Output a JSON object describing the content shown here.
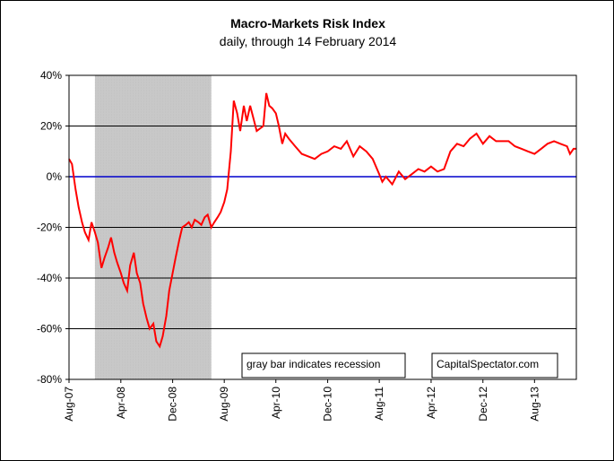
{
  "chart_data": {
    "type": "line",
    "title": "Macro-Markets Risk Index",
    "subtitle": "daily, through 14 February 2014",
    "xlabel": "",
    "ylabel": "",
    "ylim": [
      -80,
      40
    ],
    "y_ticks": [
      "40%",
      "20%",
      "0%",
      "-20%",
      "-40%",
      "-60%",
      "-80%"
    ],
    "y_tick_values": [
      40,
      20,
      0,
      -20,
      -40,
      -60,
      -80
    ],
    "x_ticks": [
      "Aug-07",
      "Apr-08",
      "Dec-08",
      "Aug-09",
      "Apr-10",
      "Dec-10",
      "Aug-11",
      "Apr-12",
      "Dec-12",
      "Aug-13"
    ],
    "x_tick_values": [
      "2007-08",
      "2008-04",
      "2008-12",
      "2009-08",
      "2010-04",
      "2010-12",
      "2011-08",
      "2012-04",
      "2012-12",
      "2013-08"
    ],
    "x_range": [
      "2007-08-01",
      "2014-02-14"
    ],
    "grid": true,
    "recession": {
      "start": "2007-12",
      "end": "2009-06",
      "color": "#c8c8c8"
    },
    "zero_line_color": "#0000cc",
    "series": [
      {
        "color": "#ff0000",
        "x": [
          "2007-08-01",
          "2007-08-15",
          "2007-09-01",
          "2007-09-15",
          "2007-10-01",
          "2007-10-15",
          "2007-11-01",
          "2007-11-15",
          "2007-12-01",
          "2007-12-15",
          "2008-01-01",
          "2008-01-15",
          "2008-02-01",
          "2008-02-15",
          "2008-03-01",
          "2008-03-15",
          "2008-04-01",
          "2008-04-15",
          "2008-05-01",
          "2008-05-15",
          "2008-06-01",
          "2008-06-15",
          "2008-07-01",
          "2008-07-15",
          "2008-08-01",
          "2008-08-15",
          "2008-09-01",
          "2008-09-15",
          "2008-10-01",
          "2008-10-15",
          "2008-11-01",
          "2008-11-15",
          "2008-12-01",
          "2008-12-15",
          "2009-01-01",
          "2009-01-15",
          "2009-02-01",
          "2009-02-15",
          "2009-03-01",
          "2009-03-15",
          "2009-04-01",
          "2009-04-15",
          "2009-05-01",
          "2009-05-15",
          "2009-06-01",
          "2009-06-15",
          "2009-07-01",
          "2009-07-15",
          "2009-08-01",
          "2009-08-15",
          "2009-09-01",
          "2009-09-15",
          "2009-10-01",
          "2009-10-15",
          "2009-11-01",
          "2009-11-15",
          "2009-12-01",
          "2010-01-01",
          "2010-02-01",
          "2010-02-15",
          "2010-03-01",
          "2010-03-15",
          "2010-04-01",
          "2010-04-15",
          "2010-05-01",
          "2010-05-15",
          "2010-06-01",
          "2010-07-01",
          "2010-08-01",
          "2010-09-01",
          "2010-10-01",
          "2010-11-01",
          "2010-12-01",
          "2011-01-01",
          "2011-02-01",
          "2011-03-01",
          "2011-04-01",
          "2011-05-01",
          "2011-06-01",
          "2011-07-01",
          "2011-08-01",
          "2011-08-15",
          "2011-09-01",
          "2011-10-01",
          "2011-11-01",
          "2011-12-01",
          "2012-01-01",
          "2012-02-01",
          "2012-03-01",
          "2012-04-01",
          "2012-05-01",
          "2012-06-01",
          "2012-07-01",
          "2012-08-01",
          "2012-09-01",
          "2012-10-01",
          "2012-11-01",
          "2012-12-01",
          "2013-01-01",
          "2013-02-01",
          "2013-03-01",
          "2013-04-01",
          "2013-05-01",
          "2013-06-01",
          "2013-07-01",
          "2013-08-01",
          "2013-09-01",
          "2013-10-01",
          "2013-11-01",
          "2013-12-01",
          "2014-01-01",
          "2014-01-15",
          "2014-02-01",
          "2014-02-14"
        ],
        "values": [
          7,
          5,
          -5,
          -12,
          -18,
          -22,
          -25,
          -18,
          -22,
          -26,
          -36,
          -32,
          -28,
          -24,
          -30,
          -34,
          -38,
          -42,
          -45,
          -35,
          -30,
          -38,
          -42,
          -50,
          -56,
          -60,
          -58,
          -65,
          -67,
          -63,
          -55,
          -45,
          -38,
          -32,
          -25,
          -20,
          -19,
          -18,
          -20,
          -17,
          -18,
          -19,
          -16,
          -15,
          -20,
          -18,
          -16,
          -14,
          -10,
          -5,
          10,
          30,
          25,
          18,
          28,
          22,
          28,
          18,
          20,
          33,
          28,
          27,
          25,
          20,
          13,
          17,
          15,
          12,
          9,
          8,
          7,
          9,
          10,
          12,
          11,
          14,
          8,
          12,
          10,
          7,
          1,
          -2,
          0,
          -3,
          2,
          -1,
          1,
          3,
          2,
          4,
          2,
          3,
          10,
          13,
          12,
          15,
          17,
          13,
          16,
          14,
          14,
          14,
          12,
          11,
          10,
          9,
          11,
          13,
          14,
          13,
          12,
          9,
          11,
          11
        ]
      }
    ],
    "annotations": [
      "gray bar indicates recession",
      "CapitalSpectator.com"
    ]
  }
}
